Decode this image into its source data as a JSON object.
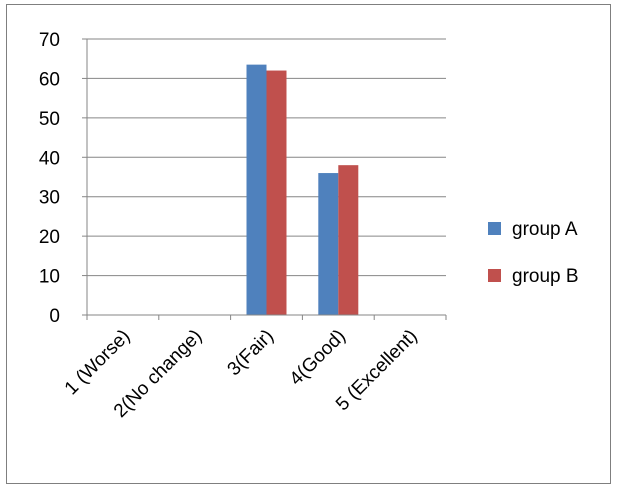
{
  "chart_data": {
    "type": "bar",
    "title": "",
    "xlabel": "",
    "ylabel": "",
    "categories": [
      "1 (Worse)",
      "2(No change)",
      "3(Fair)",
      "4(Good)",
      "5 (Excellent)"
    ],
    "series": [
      {
        "name": "group A",
        "values": [
          0,
          0,
          63.5,
          36,
          0
        ],
        "color": "#4f81bd"
      },
      {
        "name": "group B",
        "values": [
          0,
          0,
          62,
          38,
          0
        ],
        "color": "#c0504d"
      }
    ],
    "ylim": [
      0,
      70
    ],
    "yticks": [
      0,
      10,
      20,
      30,
      40,
      50,
      60,
      70
    ],
    "grid": true,
    "legend_position": "right"
  }
}
